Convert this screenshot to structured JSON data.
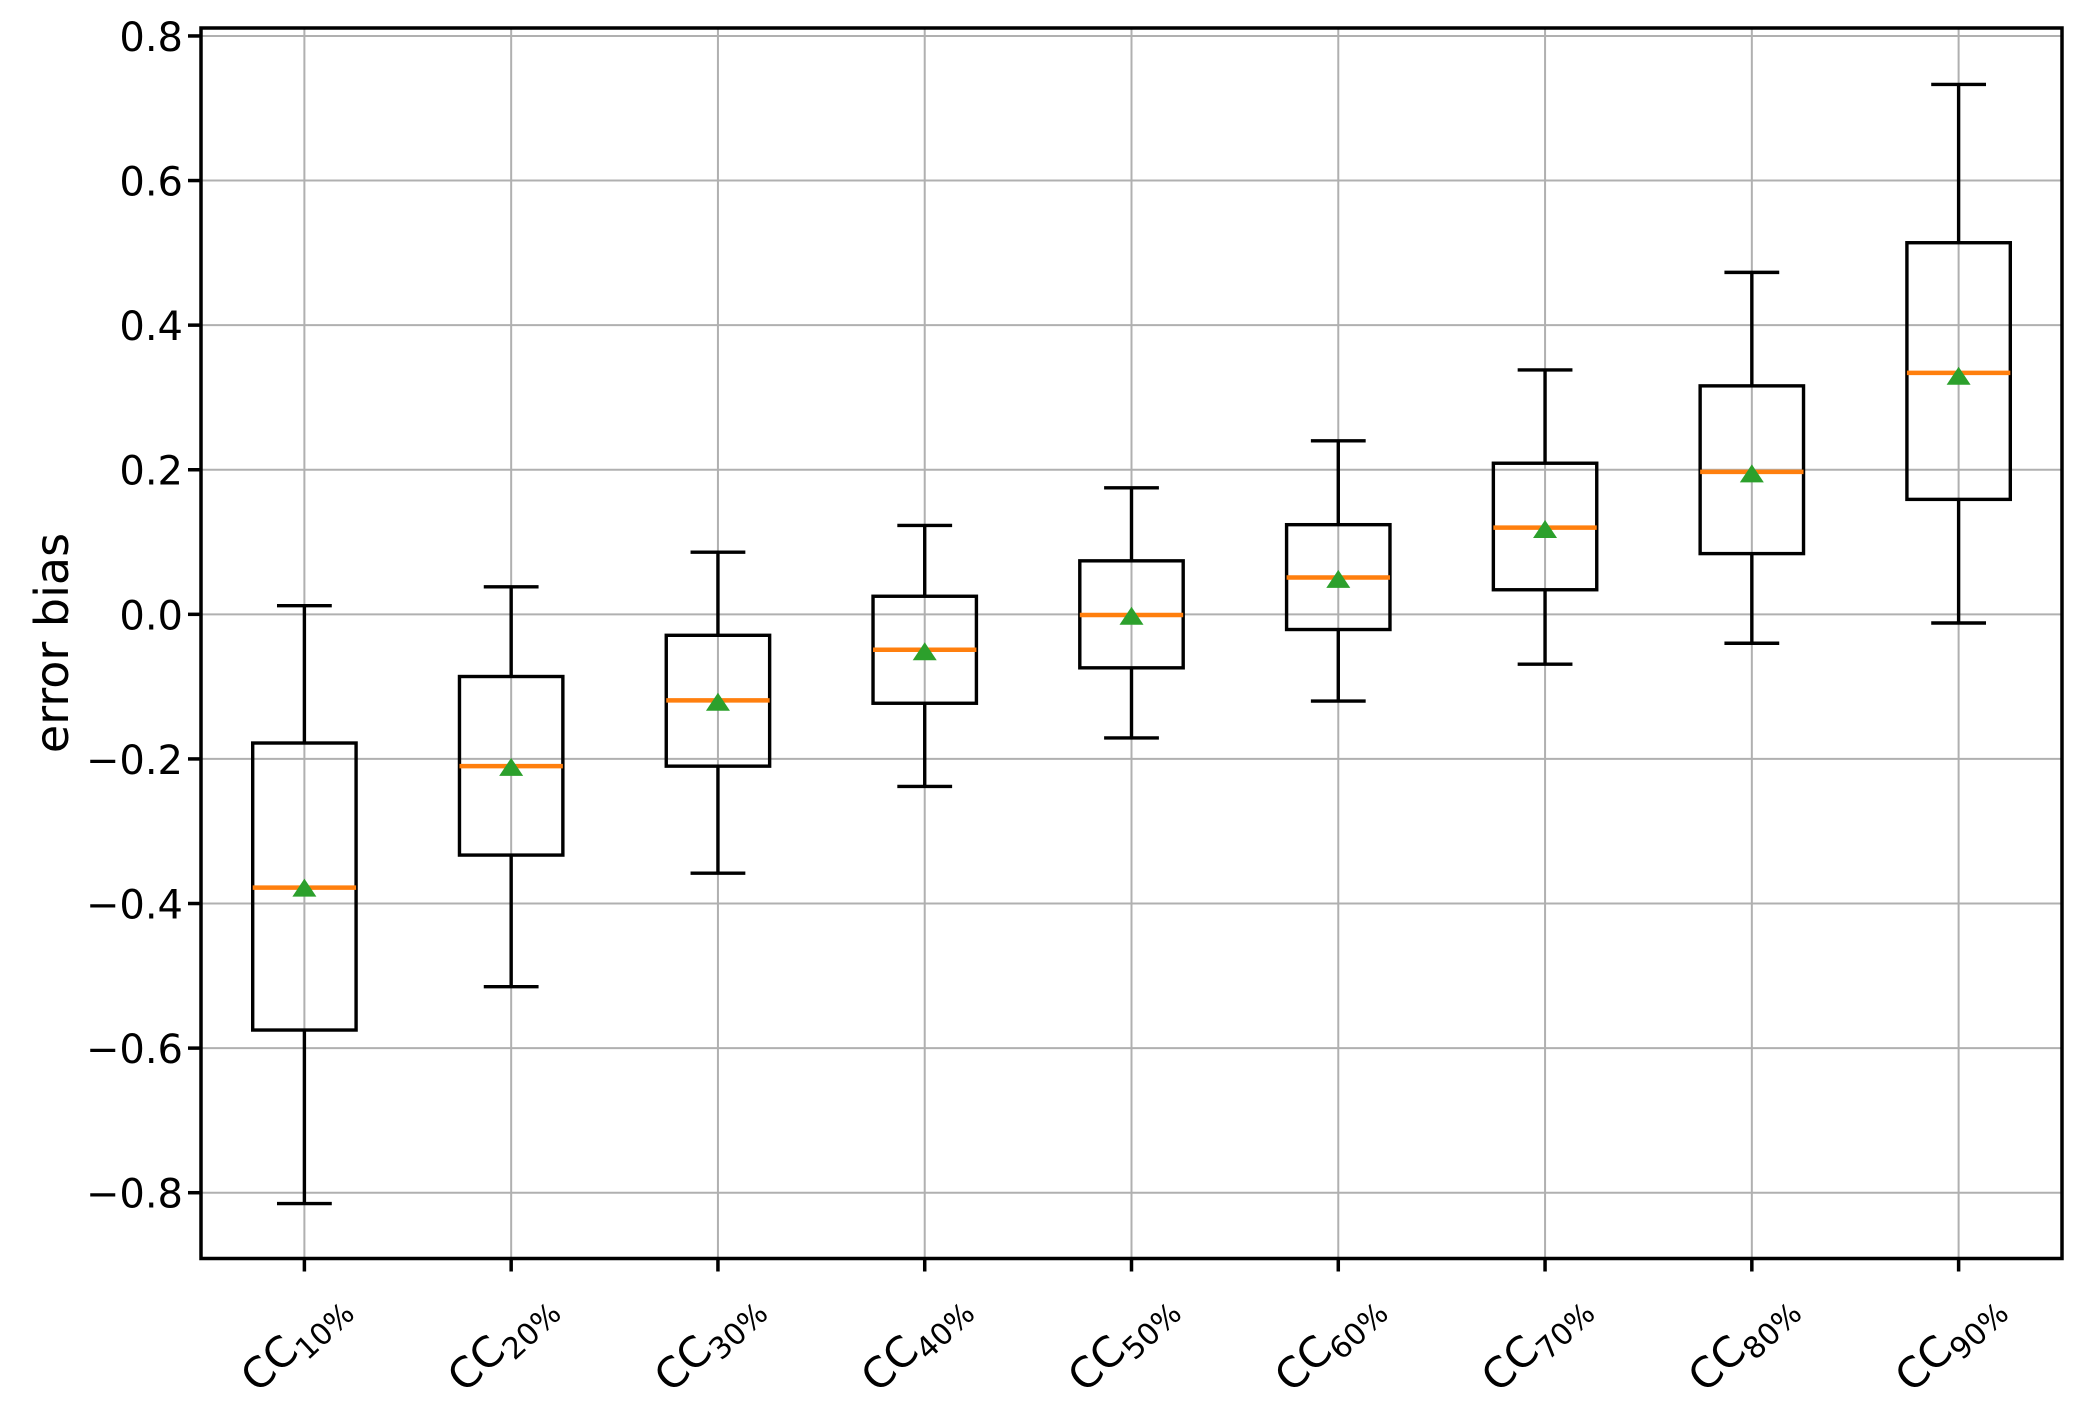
{
  "figure": {
    "background": "#ffffff"
  },
  "chart_data": {
    "type": "box",
    "title": "",
    "xlabel": "",
    "ylabel": "error bias",
    "categories": [
      {
        "base": "CC",
        "subscript": "10%"
      },
      {
        "base": "CC",
        "subscript": "20%"
      },
      {
        "base": "CC",
        "subscript": "30%"
      },
      {
        "base": "CC",
        "subscript": "40%"
      },
      {
        "base": "CC",
        "subscript": "50%"
      },
      {
        "base": "CC",
        "subscript": "60%"
      },
      {
        "base": "CC",
        "subscript": "70%"
      },
      {
        "base": "CC",
        "subscript": "80%"
      },
      {
        "base": "CC",
        "subscript": "90%"
      }
    ],
    "boxes": [
      {
        "whislo": -0.815,
        "q1": -0.575,
        "med": -0.378,
        "mean": -0.378,
        "q3": -0.178,
        "whishi": 0.012
      },
      {
        "whislo": -0.515,
        "q1": -0.333,
        "med": -0.21,
        "mean": -0.211,
        "q3": -0.086,
        "whishi": 0.038
      },
      {
        "whislo": -0.358,
        "q1": -0.21,
        "med": -0.119,
        "mean": -0.121,
        "q3": -0.029,
        "whishi": 0.086
      },
      {
        "whislo": -0.238,
        "q1": -0.123,
        "med": -0.049,
        "mean": -0.051,
        "q3": 0.025,
        "whishi": 0.123
      },
      {
        "whislo": -0.171,
        "q1": -0.074,
        "med": -0.001,
        "mean": -0.002,
        "q3": 0.074,
        "whishi": 0.175
      },
      {
        "whislo": -0.12,
        "q1": -0.021,
        "med": 0.051,
        "mean": 0.049,
        "q3": 0.124,
        "whishi": 0.24
      },
      {
        "whislo": -0.069,
        "q1": 0.034,
        "med": 0.12,
        "mean": 0.118,
        "q3": 0.209,
        "whishi": 0.338
      },
      {
        "whislo": -0.04,
        "q1": 0.084,
        "med": 0.197,
        "mean": 0.195,
        "q3": 0.316,
        "whishi": 0.473
      },
      {
        "whislo": -0.012,
        "q1": 0.159,
        "med": 0.334,
        "mean": 0.33,
        "q3": 0.514,
        "whishi": 0.733
      }
    ],
    "yticks": [
      0.8,
      0.6,
      0.4,
      0.2,
      0.0,
      -0.2,
      -0.4,
      -0.6,
      -0.8
    ],
    "ylim": [
      -0.891,
      0.811
    ],
    "xlim": [
      0.5,
      9.5
    ],
    "grid": true,
    "legend": null,
    "mean_marker_shape": "triangle-up",
    "colors": {
      "median": "#ff7f0e",
      "mean_marker": "#2ca02c",
      "box_edge": "#000000",
      "grid": "#b0b0b0",
      "background": "#ffffff"
    }
  }
}
